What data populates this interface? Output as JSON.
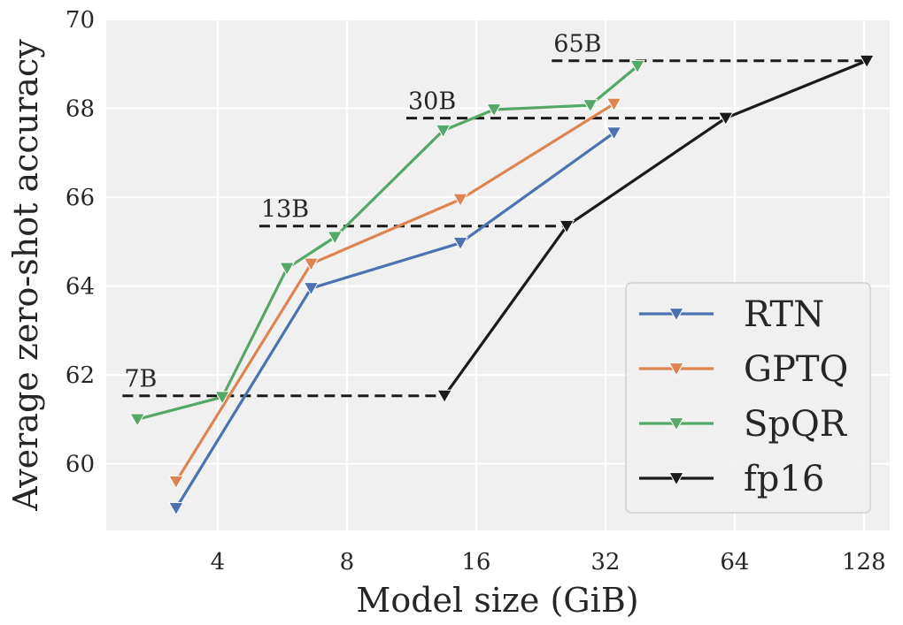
{
  "chart_data": {
    "type": "line",
    "xlabel": "Model size (GiB)",
    "ylabel": "Average zero-shot accuracy",
    "x_scale": "log2",
    "xlim": [
      2.2,
      147
    ],
    "ylim": [
      58.5,
      70
    ],
    "x_ticks": [
      4,
      8,
      16,
      32,
      64,
      128
    ],
    "x_tick_labels": [
      "4",
      "8",
      "16",
      "32",
      "64",
      "128"
    ],
    "y_ticks": [
      60,
      62,
      64,
      66,
      68,
      70
    ],
    "y_tick_labels": [
      "60",
      "62",
      "64",
      "66",
      "68",
      "70"
    ],
    "grid": true,
    "legend_position": "lower-right",
    "marker": "triangle-down",
    "series": [
      {
        "name": "RTN",
        "color": "#4c72b0",
        "x": [
          3.2,
          6.6,
          14.7,
          33.5
        ],
        "y": [
          59.0,
          63.95,
          64.97,
          67.45
        ]
      },
      {
        "name": "GPTQ",
        "color": "#dd8452",
        "x": [
          3.2,
          6.6,
          14.7,
          33.5
        ],
        "y": [
          59.6,
          64.5,
          65.95,
          68.1
        ]
      },
      {
        "name": "SpQR",
        "color": "#55a868",
        "x": [
          2.6,
          4.1,
          5.8,
          7.5,
          13.4,
          17.6,
          29.5,
          38.0
        ],
        "y": [
          61.0,
          61.5,
          64.4,
          65.1,
          67.5,
          67.97,
          68.07,
          68.95
        ]
      },
      {
        "name": "fp16",
        "color": "#1a1a1a",
        "x": [
          13.5,
          26.0,
          61.0,
          130.0
        ],
        "y": [
          61.53,
          65.35,
          67.78,
          69.07
        ]
      }
    ],
    "reference_lines": [
      {
        "label": "7B",
        "y": 61.53,
        "x_range": [
          2.4,
          13.5
        ]
      },
      {
        "label": "13B",
        "y": 65.35,
        "x_range": [
          5.0,
          26.0
        ]
      },
      {
        "label": "30B",
        "y": 67.78,
        "x_range": [
          11.0,
          61.0
        ]
      },
      {
        "label": "65B",
        "y": 69.07,
        "x_range": [
          24.0,
          130.0
        ]
      }
    ]
  }
}
